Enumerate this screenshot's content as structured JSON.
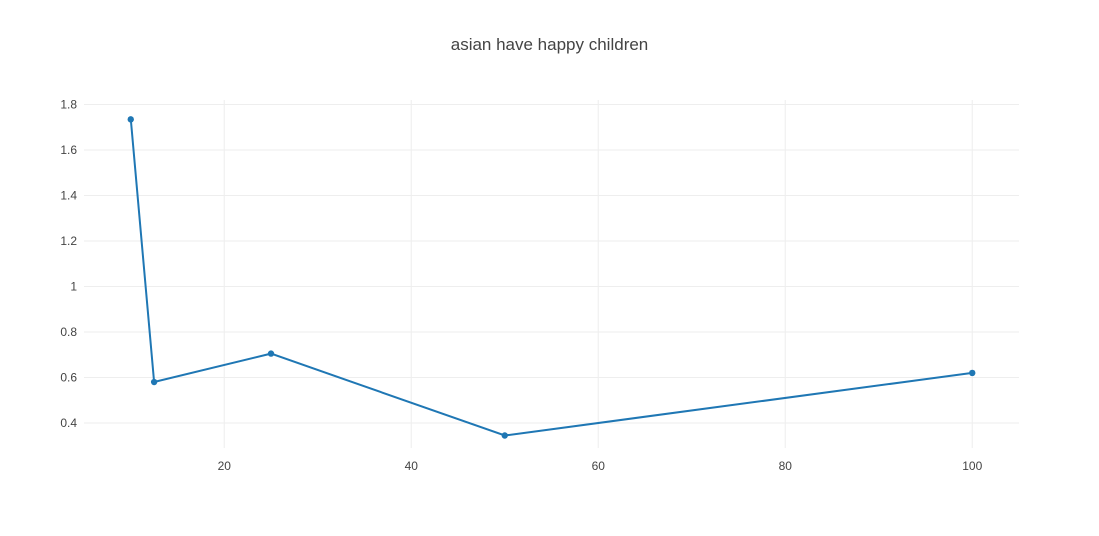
{
  "chart_data": {
    "type": "line",
    "title": "asian have happy children",
    "xlabel": "",
    "ylabel": "",
    "xlim": [
      5,
      105
    ],
    "ylim": [
      0.29,
      1.82
    ],
    "grid": true,
    "xticks": [
      20,
      40,
      60,
      80,
      100
    ],
    "yticks": [
      0.4,
      0.6,
      0.8,
      1,
      1.2,
      1.4,
      1.6,
      1.8
    ],
    "ytick_labels": [
      "0.4",
      "0.6",
      "0.8",
      "1",
      "1.2",
      "1.4",
      "1.6",
      "1.8"
    ],
    "series": [
      {
        "color": "#1f77b4",
        "x": [
          10,
          12.5,
          25,
          50,
          100
        ],
        "y": [
          1.735,
          0.58,
          0.705,
          0.345,
          0.62
        ]
      }
    ]
  }
}
